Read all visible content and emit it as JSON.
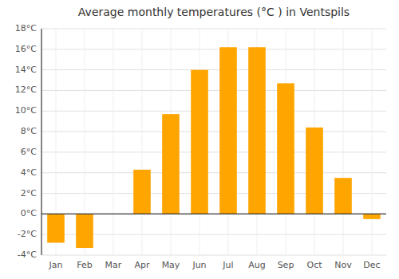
{
  "chart_data": {
    "type": "bar",
    "title": "Average monthly temperatures (°C ) in Ventspils",
    "categories": [
      "Jan",
      "Feb",
      "Mar",
      "Apr",
      "May",
      "Jun",
      "Jul",
      "Aug",
      "Sep",
      "Oct",
      "Nov",
      "Dec"
    ],
    "values": [
      -2.8,
      -3.3,
      0.0,
      4.3,
      9.7,
      14.0,
      16.2,
      16.2,
      12.7,
      8.4,
      3.5,
      -0.5
    ],
    "color": "#FFA500",
    "ylim": [
      -4,
      18
    ],
    "yticks": [
      {
        "value": -4,
        "label": "-4°C"
      },
      {
        "value": -2,
        "label": "-2°C"
      },
      {
        "value": 0,
        "label": "0°C"
      },
      {
        "value": 2,
        "label": "2°C"
      },
      {
        "value": 4,
        "label": "4°C"
      },
      {
        "value": 6,
        "label": "6°C"
      },
      {
        "value": 8,
        "label": "8°C"
      },
      {
        "value": 10,
        "label": "10°C"
      },
      {
        "value": 12,
        "label": "12°C"
      },
      {
        "value": 14,
        "label": "14°C"
      },
      {
        "value": 16,
        "label": "16°C"
      },
      {
        "value": 18,
        "label": "18°C"
      }
    ],
    "grid": true
  }
}
